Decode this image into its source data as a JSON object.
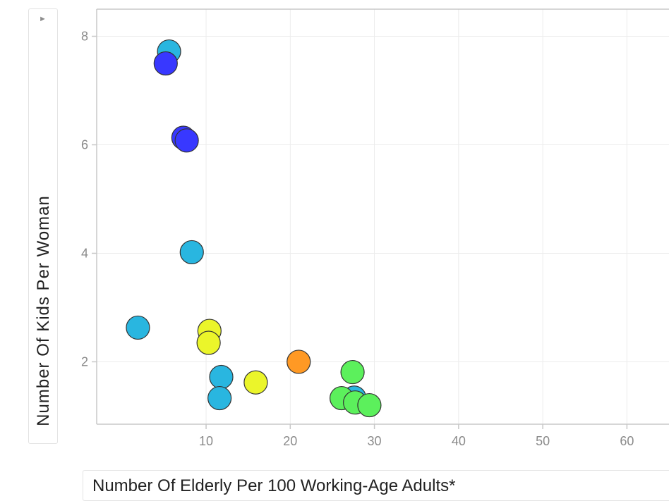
{
  "y_selector": {
    "toggle_icon": "triangle-right-icon",
    "label": "Number Of Kids Per Woman"
  },
  "x_selector": {
    "label": "Number Of Elderly Per 100 Working-Age Adults*"
  },
  "chart_data": {
    "type": "scatter",
    "xlabel": "Number Of Elderly Per 100 Working-Age Adults*",
    "ylabel": "Number Of Kids Per Woman",
    "xlim": [
      -3,
      65
    ],
    "ylim": [
      0.85,
      8.5
    ],
    "x_ticks": [
      10,
      20,
      30,
      40,
      50,
      60
    ],
    "y_ticks": [
      2,
      4,
      6,
      8
    ],
    "grid": true,
    "points": [
      {
        "x": 5.6,
        "y": 7.72,
        "color": "#29b6e0"
      },
      {
        "x": 5.2,
        "y": 7.5,
        "color": "#3838ff"
      },
      {
        "x": 7.3,
        "y": 6.13,
        "color": "#3838ff"
      },
      {
        "x": 7.7,
        "y": 6.08,
        "color": "#3838ff"
      },
      {
        "x": 8.3,
        "y": 4.02,
        "color": "#29b6e0"
      },
      {
        "x": 1.9,
        "y": 2.63,
        "color": "#29b6e0"
      },
      {
        "x": 10.4,
        "y": 2.57,
        "color": "#ebf52a"
      },
      {
        "x": 10.3,
        "y": 2.35,
        "color": "#ebf52a"
      },
      {
        "x": 11.8,
        "y": 1.72,
        "color": "#29b6e0"
      },
      {
        "x": 11.6,
        "y": 1.33,
        "color": "#29b6e0"
      },
      {
        "x": 15.9,
        "y": 1.62,
        "color": "#ebf52a"
      },
      {
        "x": 21.0,
        "y": 2.0,
        "color": "#ff9924"
      },
      {
        "x": 27.4,
        "y": 1.81,
        "color": "#5cf05c"
      },
      {
        "x": 27.6,
        "y": 1.34,
        "color": "#29b6e0"
      },
      {
        "x": 26.1,
        "y": 1.33,
        "color": "#5cf05c"
      },
      {
        "x": 27.7,
        "y": 1.25,
        "color": "#5cf05c"
      },
      {
        "x": 29.4,
        "y": 1.2,
        "color": "#5cf05c"
      }
    ]
  }
}
